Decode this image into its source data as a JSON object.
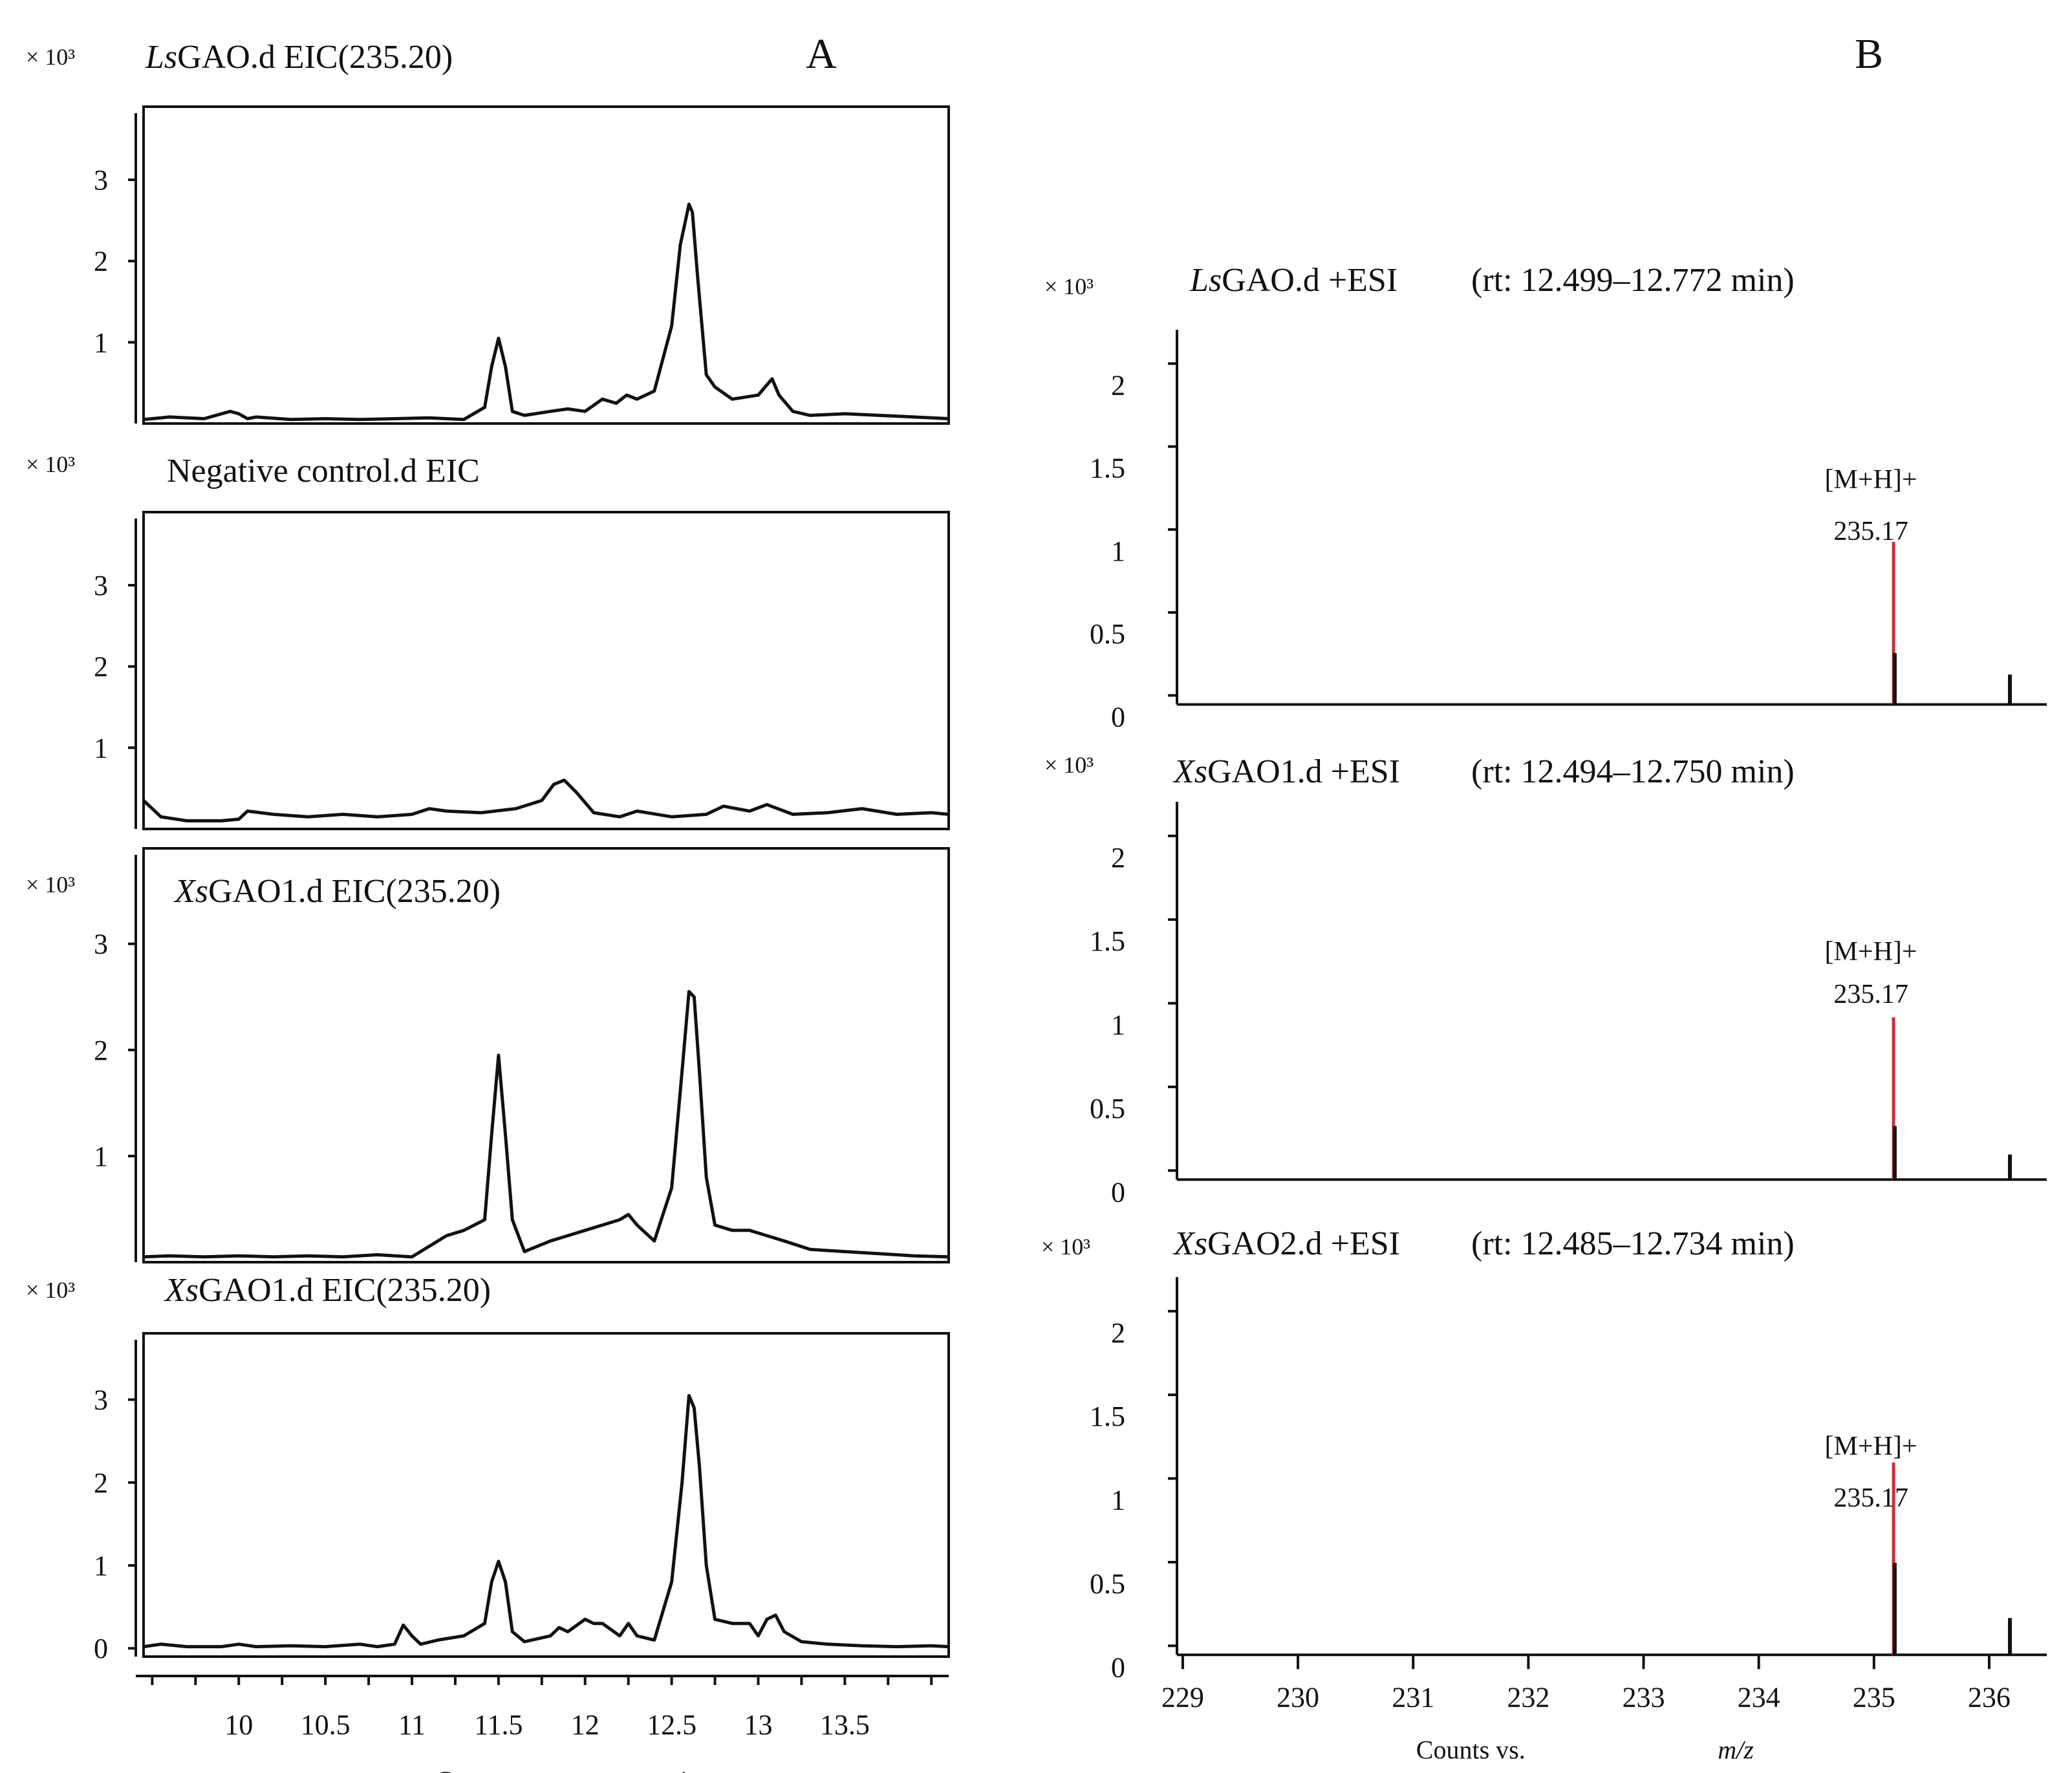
{
  "figure": {
    "panel_labels": [
      "A",
      "B"
    ],
    "multiplier_label": "× 10³"
  },
  "chart_data": [
    {
      "type": "line",
      "panel": "A",
      "title_italic": "Ls",
      "title_rest": "GAO.d EIC(235.20)",
      "ylim": [
        0,
        3.9
      ],
      "yticks": [
        "1",
        "2",
        "3"
      ],
      "xlim": [
        9.45,
        14.1
      ],
      "x": [
        9.45,
        9.6,
        9.8,
        9.95,
        10.0,
        10.05,
        10.1,
        10.3,
        10.5,
        10.7,
        10.9,
        11.1,
        11.3,
        11.42,
        11.46,
        11.5,
        11.54,
        11.58,
        11.65,
        11.8,
        11.9,
        12.0,
        12.1,
        12.18,
        12.24,
        12.3,
        12.4,
        12.5,
        12.55,
        12.6,
        12.62,
        12.65,
        12.7,
        12.75,
        12.85,
        13.0,
        13.08,
        13.12,
        13.2,
        13.3,
        13.5,
        13.7,
        13.9,
        14.1
      ],
      "y": [
        0.05,
        0.08,
        0.06,
        0.15,
        0.12,
        0.06,
        0.08,
        0.05,
        0.06,
        0.05,
        0.06,
        0.07,
        0.05,
        0.2,
        0.7,
        1.05,
        0.7,
        0.15,
        0.1,
        0.15,
        0.18,
        0.15,
        0.3,
        0.25,
        0.35,
        0.3,
        0.4,
        1.2,
        2.2,
        2.7,
        2.6,
        1.8,
        0.6,
        0.45,
        0.3,
        0.35,
        0.55,
        0.35,
        0.15,
        0.1,
        0.12,
        0.1,
        0.08,
        0.06
      ]
    },
    {
      "type": "line",
      "panel": "A",
      "title_italic": "",
      "title_rest": "Negative control.d EIC",
      "ylim": [
        0,
        3.9
      ],
      "yticks": [
        "1",
        "2",
        "3"
      ],
      "xlim": [
        9.45,
        14.1
      ],
      "x": [
        9.45,
        9.55,
        9.7,
        9.9,
        10.0,
        10.05,
        10.2,
        10.4,
        10.6,
        10.8,
        11.0,
        11.1,
        11.2,
        11.4,
        11.6,
        11.75,
        11.82,
        11.88,
        11.95,
        12.05,
        12.2,
        12.3,
        12.5,
        12.7,
        12.8,
        12.95,
        13.05,
        13.2,
        13.4,
        13.6,
        13.8,
        14.0,
        14.1
      ],
      "y": [
        0.35,
        0.15,
        0.1,
        0.1,
        0.12,
        0.22,
        0.18,
        0.15,
        0.18,
        0.15,
        0.18,
        0.25,
        0.22,
        0.2,
        0.25,
        0.35,
        0.55,
        0.6,
        0.45,
        0.2,
        0.15,
        0.22,
        0.15,
        0.18,
        0.28,
        0.22,
        0.3,
        0.18,
        0.2,
        0.25,
        0.18,
        0.2,
        0.18
      ]
    },
    {
      "type": "line",
      "panel": "A",
      "title_italic": "Xs",
      "title_rest": "GAO1.d EIC(235.20)",
      "ylim": [
        0,
        3.9
      ],
      "yticks": [
        "1",
        "2",
        "3"
      ],
      "xlim": [
        9.45,
        14.1
      ],
      "x": [
        9.45,
        9.6,
        9.8,
        10.0,
        10.2,
        10.4,
        10.6,
        10.8,
        11.0,
        11.1,
        11.2,
        11.3,
        11.42,
        11.46,
        11.5,
        11.54,
        11.58,
        11.65,
        11.8,
        11.9,
        12.0,
        12.1,
        12.2,
        12.25,
        12.3,
        12.4,
        12.5,
        12.56,
        12.6,
        12.63,
        12.66,
        12.7,
        12.75,
        12.85,
        12.95,
        13.05,
        13.15,
        13.3,
        13.5,
        13.7,
        13.9,
        14.1
      ],
      "y": [
        0.05,
        0.06,
        0.05,
        0.06,
        0.05,
        0.06,
        0.05,
        0.07,
        0.05,
        0.15,
        0.25,
        0.3,
        0.4,
        1.2,
        1.95,
        1.2,
        0.4,
        0.1,
        0.2,
        0.25,
        0.3,
        0.35,
        0.4,
        0.45,
        0.35,
        0.2,
        0.7,
        1.8,
        2.55,
        2.5,
        1.8,
        0.8,
        0.35,
        0.3,
        0.3,
        0.25,
        0.2,
        0.12,
        0.1,
        0.08,
        0.06,
        0.05
      ]
    },
    {
      "type": "line",
      "panel": "A",
      "title_italic": "Xs",
      "title_rest": "GAO1.d EIC(235.20)",
      "ylim": [
        -0.1,
        3.8
      ],
      "yticks": [
        "0",
        "1",
        "2",
        "3"
      ],
      "xlim": [
        9.45,
        14.1
      ],
      "xticks": [
        "10",
        "10.5",
        "11",
        "11.5",
        "12",
        "12.5",
        "13",
        "13.5"
      ],
      "xlabel_left": "Counts vs.",
      "xlabel_right": "min",
      "x": [
        9.45,
        9.55,
        9.7,
        9.9,
        10.0,
        10.1,
        10.3,
        10.5,
        10.7,
        10.8,
        10.9,
        10.95,
        11.0,
        11.05,
        11.15,
        11.3,
        11.42,
        11.46,
        11.5,
        11.54,
        11.58,
        11.65,
        11.8,
        11.85,
        11.9,
        12.0,
        12.05,
        12.1,
        12.2,
        12.25,
        12.3,
        12.4,
        12.5,
        12.56,
        12.6,
        12.63,
        12.66,
        12.7,
        12.75,
        12.85,
        12.95,
        13.0,
        13.05,
        13.1,
        13.15,
        13.25,
        13.4,
        13.6,
        13.8,
        14.0,
        14.1
      ],
      "y": [
        0.02,
        0.05,
        0.02,
        0.02,
        0.05,
        0.02,
        0.03,
        0.02,
        0.05,
        0.02,
        0.05,
        0.28,
        0.15,
        0.05,
        0.1,
        0.15,
        0.3,
        0.8,
        1.05,
        0.8,
        0.2,
        0.08,
        0.15,
        0.25,
        0.2,
        0.35,
        0.3,
        0.3,
        0.15,
        0.3,
        0.15,
        0.1,
        0.8,
        2.0,
        3.05,
        2.9,
        2.2,
        1.0,
        0.35,
        0.3,
        0.3,
        0.15,
        0.35,
        0.4,
        0.2,
        0.08,
        0.05,
        0.03,
        0.02,
        0.03,
        0.02
      ]
    },
    {
      "type": "bar",
      "panel": "B",
      "title_italic": "Ls",
      "title_rest": "GAO.d +ESI",
      "rt": "(rt: 12.499–12.772 min)",
      "ylim": [
        -0.08,
        2.2
      ],
      "yticks": [
        "0",
        "0.5",
        "1",
        "1.5",
        "2"
      ],
      "xlim": [
        228.95,
        236.5
      ],
      "peak_label": "[M+H]+",
      "peak_mz": "235.17",
      "peaks": [
        {
          "mz": 235.17,
          "intensity": 0.98,
          "color": "#c8323c"
        },
        {
          "mz": 235.18,
          "intensity": 0.31,
          "color": "#111111"
        },
        {
          "mz": 236.18,
          "intensity": 0.18,
          "color": "#111111"
        }
      ]
    },
    {
      "type": "bar",
      "panel": "B",
      "title_italic": "Xs",
      "title_rest": "GAO1.d +ESI",
      "rt": "(rt: 12.494–12.750 min)",
      "ylim": [
        -0.08,
        2.2
      ],
      "yticks": [
        "0",
        "0.5",
        "1",
        "1.5",
        "2"
      ],
      "xlim": [
        228.95,
        236.5
      ],
      "peak_label": "[M+H]+",
      "peak_mz": "235.17",
      "peaks": [
        {
          "mz": 235.17,
          "intensity": 0.97,
          "color": "#c8323c"
        },
        {
          "mz": 235.18,
          "intensity": 0.32,
          "color": "#111111"
        },
        {
          "mz": 236.18,
          "intensity": 0.15,
          "color": "#111111"
        }
      ]
    },
    {
      "type": "bar",
      "panel": "B",
      "title_italic": "Xs",
      "title_rest": "GAO2.d +ESI",
      "rt": "(rt: 12.485–12.734 min)",
      "ylim": [
        -0.08,
        2.2
      ],
      "yticks": [
        "0",
        "0.5",
        "1",
        "1.5",
        "2"
      ],
      "xlim": [
        228.95,
        236.5
      ],
      "xticks": [
        "229",
        "230",
        "231",
        "232",
        "233",
        "234",
        "235",
        "236"
      ],
      "xlabel_left": "Counts vs.",
      "xlabel_right": "m/z",
      "peak_label": "[M+H]+",
      "peak_mz": "235.17",
      "peaks": [
        {
          "mz": 235.17,
          "intensity": 1.15,
          "color": "#c8323c"
        },
        {
          "mz": 235.18,
          "intensity": 0.55,
          "color": "#111111"
        },
        {
          "mz": 236.18,
          "intensity": 0.22,
          "color": "#111111"
        }
      ]
    }
  ]
}
